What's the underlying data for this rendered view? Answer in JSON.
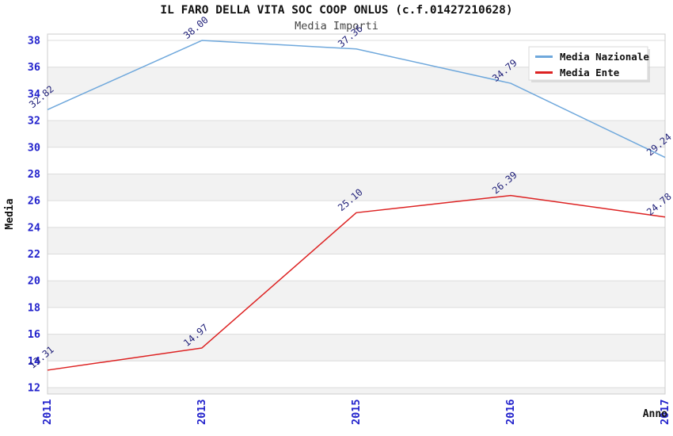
{
  "header": {
    "title": "IL FARO DELLA VITA SOC COOP ONLUS (c.f.01427210628)",
    "subtitle": "Media Importi"
  },
  "chart_data": {
    "type": "line",
    "categories": [
      "2011",
      "2013",
      "2015",
      "2016",
      "2017"
    ],
    "series": [
      {
        "name": "Media Nazionale",
        "color": "#6fa8dc",
        "values": [
          32.82,
          38.0,
          37.36,
          34.79,
          29.24
        ]
      },
      {
        "name": "Media Ente",
        "color": "#dd2222",
        "values": [
          13.31,
          14.97,
          25.1,
          26.39,
          24.78
        ]
      }
    ],
    "title": "IL FARO DELLA VITA SOC COOP ONLUS (c.f.01427210628)",
    "subtitle": "Media Importi",
    "xlabel": "Anno",
    "ylabel": "Media",
    "ylim": [
      12,
      38
    ],
    "ytick_step": 2,
    "grid": true,
    "banded_background": true,
    "legend_position": "top-right",
    "value_label_decimals": 2,
    "colors": {
      "tick_label": "#2222cc",
      "value_label": "#22227a",
      "axis_title": "#111111",
      "band_fill": "#f2f2f2",
      "grid_line": "#dcdcdc",
      "plot_border": "#cccccc",
      "legend_bg": "#ffffff",
      "legend_border": "#dadada",
      "legend_shadow": "#c8c8c8",
      "legend_text": "#111111"
    }
  }
}
